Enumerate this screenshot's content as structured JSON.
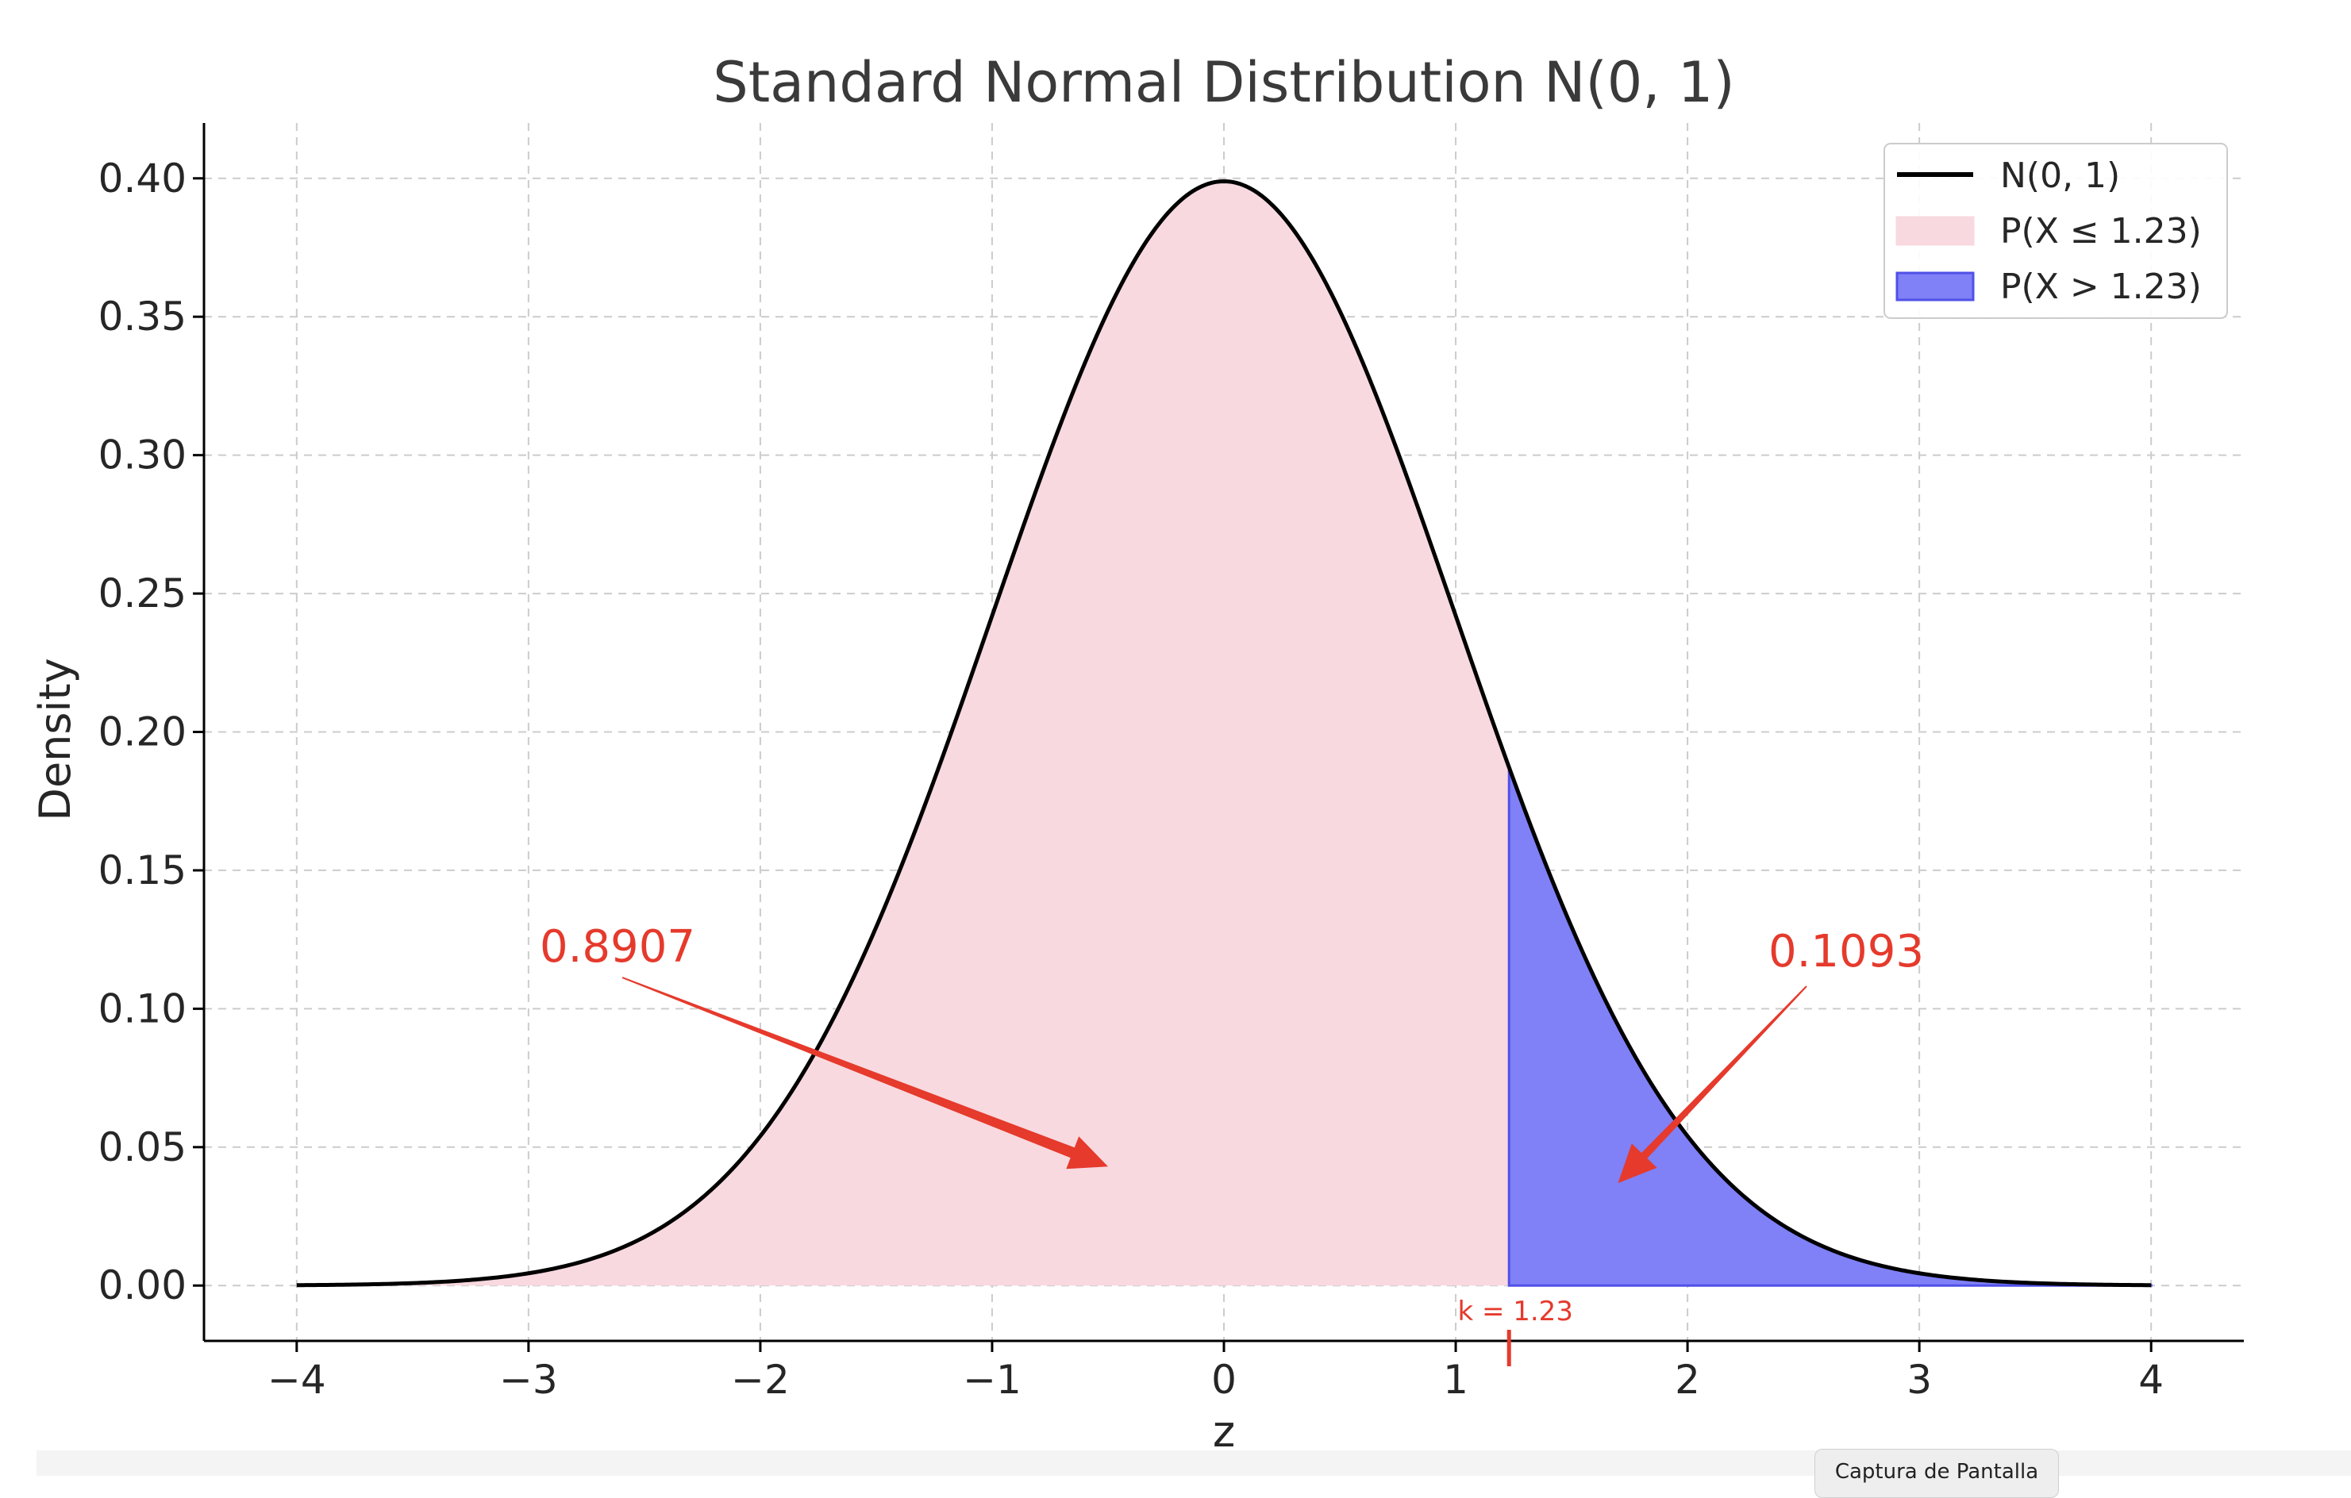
{
  "chart_data": {
    "type": "area",
    "title": "Standard Normal Distribution N(0, 1)",
    "xlabel": "z",
    "ylabel": "Density",
    "xlim": [
      -4.4,
      4.4
    ],
    "ylim": [
      -0.02,
      0.42
    ],
    "x_ticks": [
      -4,
      -3,
      -2,
      -1,
      0,
      1,
      2,
      3,
      4
    ],
    "x_tick_labels": [
      "−4",
      "−3",
      "−2",
      "−1",
      "0",
      "1",
      "2",
      "3",
      "4"
    ],
    "y_ticks": [
      0.0,
      0.05,
      0.1,
      0.15,
      0.2,
      0.25,
      0.3,
      0.35,
      0.4
    ],
    "y_tick_labels": [
      "0.00",
      "0.05",
      "0.10",
      "0.15",
      "0.20",
      "0.25",
      "0.30",
      "0.35",
      "0.40"
    ],
    "grid": true,
    "legend_placement": "top-right",
    "curve": {
      "name": "N(0, 1)",
      "distribution": "normal",
      "mean": 0,
      "sd": 1,
      "x_range": [
        -4,
        4
      ],
      "color": "#000000"
    },
    "series": [
      {
        "name": "N(0, 1)",
        "kind": "line",
        "color": "#000000"
      },
      {
        "name": "P(X ≤ 1.23)",
        "kind": "area",
        "x_range": [
          -4,
          1.23
        ],
        "color": "#f8d9df"
      },
      {
        "name": "P(X > 1.23)",
        "kind": "area",
        "x_range": [
          1.23,
          4
        ],
        "color": "#8080f7"
      }
    ],
    "cutoff": {
      "k": 1.23,
      "label": "k = 1.23"
    },
    "annotations": [
      {
        "text": "0.8907",
        "arrow_to": [
          -0.5,
          0.043
        ]
      },
      {
        "text": "0.1093",
        "arrow_to": [
          1.7,
          0.037
        ]
      }
    ]
  },
  "screen": {
    "capture_button": "Captura de Pantalla"
  }
}
